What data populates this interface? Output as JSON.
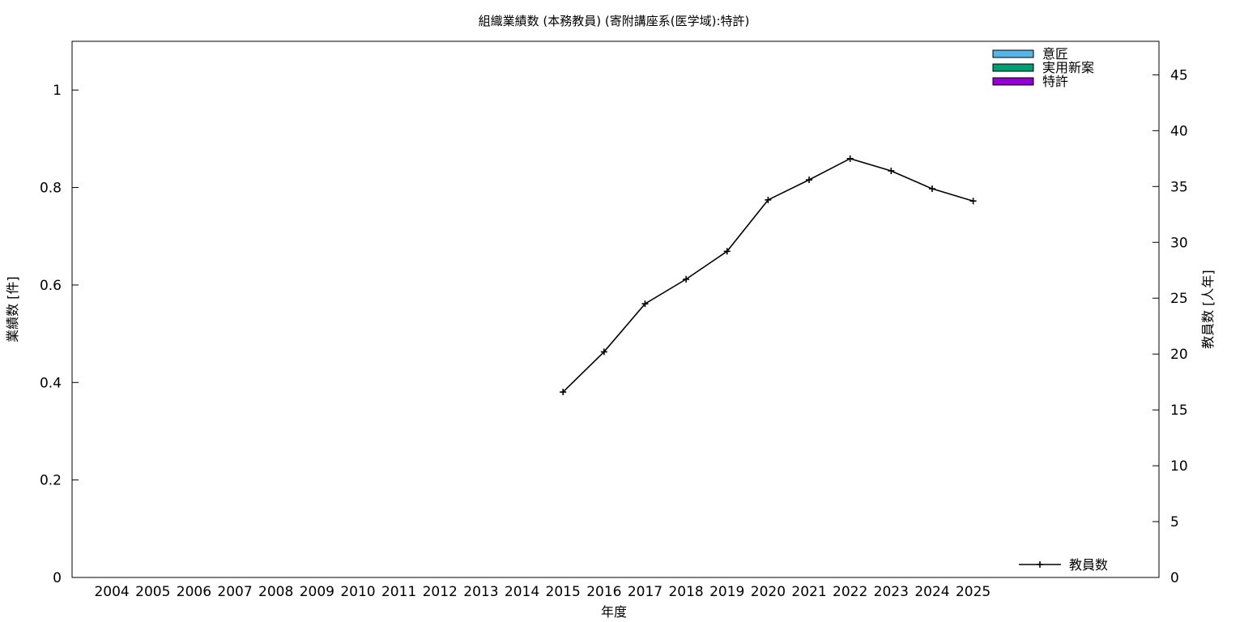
{
  "chart_data": {
    "type": "bar",
    "title": "組織業績数 (本務教員) (寄附講座系(医学域):特許)",
    "xlabel": "年度",
    "ylabel": "業績数 [件]",
    "y2label": "教員数 [人年]",
    "categories": [
      "2004",
      "2005",
      "2006",
      "2007",
      "2008",
      "2009",
      "2010",
      "2011",
      "2012",
      "2013",
      "2014",
      "2015",
      "2016",
      "2017",
      "2018",
      "2019",
      "2020",
      "2021",
      "2022",
      "2023",
      "2024",
      "2025"
    ],
    "ylim": [
      0,
      1.1
    ],
    "yticks": [
      0,
      0.2,
      0.4,
      0.6,
      0.8,
      1
    ],
    "ytick_labels": [
      "0",
      "0.2",
      "0.4",
      "0.6",
      "0.8",
      "1"
    ],
    "y2lim": [
      0,
      48
    ],
    "y2ticks": [
      0,
      5,
      10,
      15,
      20,
      25,
      30,
      35,
      40,
      45
    ],
    "grid": false,
    "legend_position": "top-right",
    "bar_series": [
      {
        "name": "意匠",
        "color": "#56b4e9",
        "values": [
          0,
          0,
          0,
          0,
          0,
          0,
          0,
          0,
          0,
          0,
          0,
          0,
          0,
          0,
          0,
          0,
          0,
          0,
          0,
          0,
          0,
          0
        ]
      },
      {
        "name": "実用新案",
        "color": "#009e73",
        "values": [
          0,
          0,
          0,
          0,
          0,
          0,
          0,
          0,
          0,
          0,
          0,
          0,
          0,
          0,
          0,
          0,
          0,
          0,
          0,
          0,
          0,
          0
        ]
      },
      {
        "name": "特許",
        "color": "#9400d3",
        "values": [
          0,
          0,
          0,
          0,
          0,
          0,
          0,
          0,
          0,
          0,
          0,
          0,
          0,
          0,
          0,
          0,
          0,
          0,
          0,
          0,
          0,
          0
        ]
      }
    ],
    "line_series": [
      {
        "name": "教員数",
        "color": "#000000",
        "axis": "right",
        "x": [
          "2015",
          "2016",
          "2017",
          "2018",
          "2019",
          "2020",
          "2021",
          "2022",
          "2023",
          "2024",
          "2025"
        ],
        "values": [
          16.6,
          20.2,
          24.5,
          26.7,
          29.2,
          33.8,
          35.6,
          37.5,
          36.4,
          34.8,
          33.7
        ]
      }
    ]
  }
}
